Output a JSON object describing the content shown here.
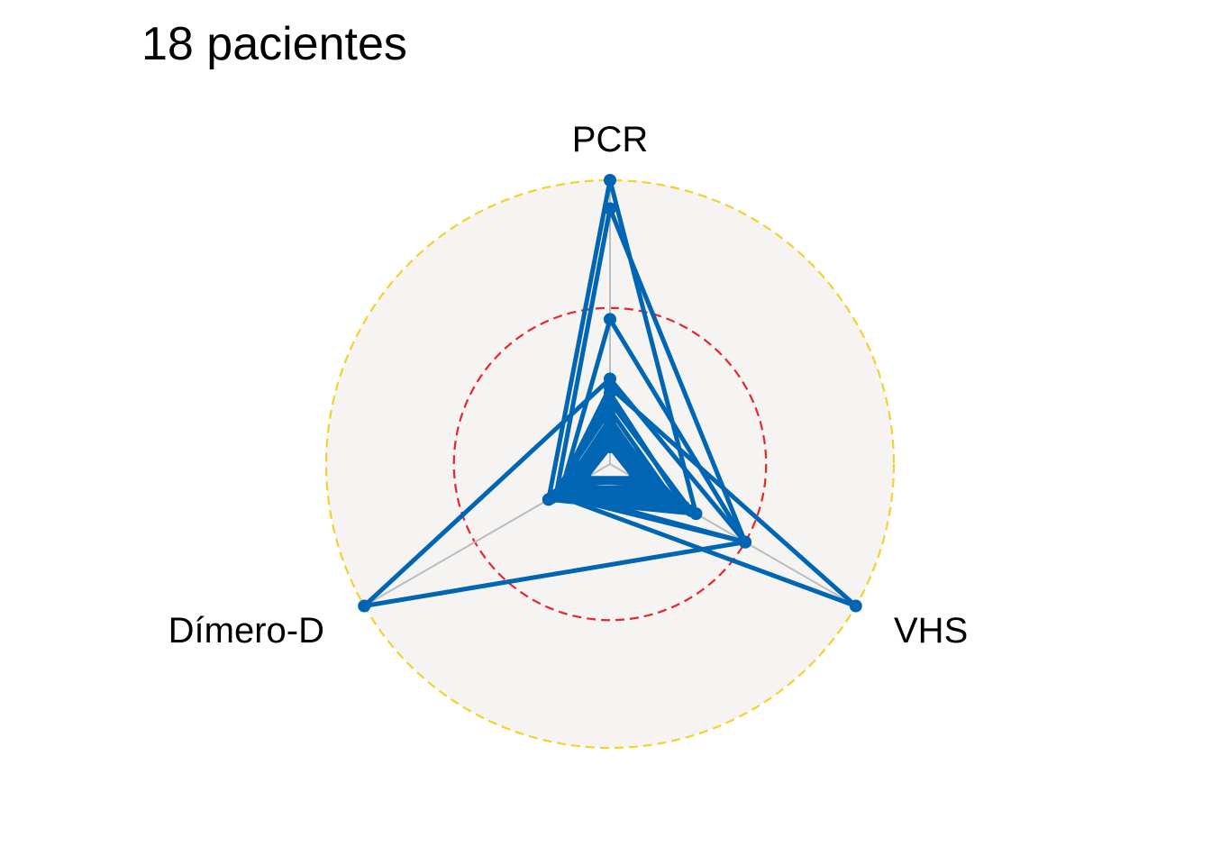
{
  "chart_data": {
    "type": "radar",
    "title": "18 pacientes",
    "axes": [
      "PCR",
      "VHS",
      "Dímero-D"
    ],
    "r_range": [
      0,
      1
    ],
    "reference_circles": [
      {
        "value": 0.55,
        "color": "#e8252a",
        "style": "dashed"
      },
      {
        "value": 1.0,
        "color": "#f2d22e",
        "style": "dashed"
      }
    ],
    "background_color": "#f5f4f3",
    "spoke_color": "#bdbdbd",
    "series_color": "#0066b3",
    "series": [
      {
        "values": [
          1.0,
          0.35,
          0.25
        ]
      },
      {
        "values": [
          0.9,
          0.55,
          0.22
        ]
      },
      {
        "values": [
          0.51,
          0.55,
          0.2
        ]
      },
      {
        "values": [
          0.3,
          0.55,
          1.0
        ]
      },
      {
        "values": [
          0.27,
          1.0,
          0.22
        ]
      },
      {
        "values": [
          0.25,
          0.3,
          0.2
        ]
      },
      {
        "values": [
          0.22,
          0.33,
          0.23
        ]
      },
      {
        "values": [
          0.19,
          0.26,
          0.24
        ]
      },
      {
        "values": [
          0.16,
          0.22,
          0.2
        ]
      },
      {
        "values": [
          0.14,
          0.28,
          0.18
        ]
      },
      {
        "values": [
          0.13,
          0.2,
          0.21
        ]
      },
      {
        "values": [
          0.12,
          0.24,
          0.16
        ]
      },
      {
        "values": [
          0.11,
          0.18,
          0.19
        ]
      },
      {
        "values": [
          0.1,
          0.21,
          0.15
        ]
      },
      {
        "values": [
          0.09,
          0.16,
          0.17
        ]
      },
      {
        "values": [
          0.08,
          0.12,
          0.14
        ]
      },
      {
        "values": [
          0.07,
          0.14,
          0.12
        ]
      },
      {
        "values": [
          0.06,
          0.1,
          0.1
        ]
      }
    ]
  }
}
